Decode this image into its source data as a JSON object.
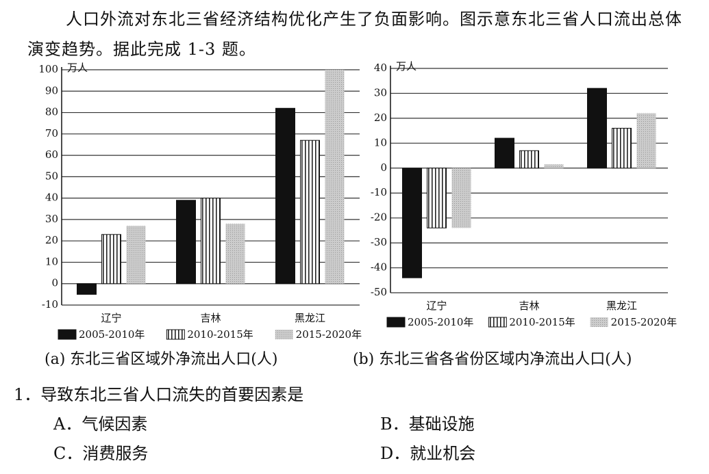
{
  "intro": "人口外流对东北三省经济结构优化产生了负面影响。图示意东北三省人口流出总体演变趋势。据此完成 1-3 题。",
  "chart_data": [
    {
      "type": "bar",
      "caption": "(a) 东北三省区域外净流出人口(人)",
      "y_label": "万人",
      "categories": [
        "辽宁",
        "吉林",
        "黑龙江"
      ],
      "series": [
        {
          "name": "2005-2010年",
          "color": "#111111",
          "pattern": "solid",
          "values": [
            -5,
            39,
            82
          ]
        },
        {
          "name": "2010-2015年",
          "color": "#222222",
          "pattern": "stripes",
          "values": [
            23,
            40,
            67
          ]
        },
        {
          "name": "2015-2020年",
          "color": "#bbbbbb",
          "pattern": "dots",
          "values": [
            27,
            28,
            100
          ]
        }
      ],
      "ylim": [
        -10,
        100
      ],
      "yticks": [
        -10,
        0,
        10,
        20,
        30,
        40,
        50,
        60,
        70,
        80,
        90,
        100
      ],
      "grid": true
    },
    {
      "type": "bar",
      "caption": "(b) 东北三省各省份区域内净流出人口(人)",
      "y_label": "万人",
      "categories": [
        "辽宁",
        "吉林",
        "黑龙江"
      ],
      "series": [
        {
          "name": "2005-2010年",
          "color": "#111111",
          "pattern": "solid",
          "values": [
            -44,
            12,
            32
          ]
        },
        {
          "name": "2010-2015年",
          "color": "#222222",
          "pattern": "stripes",
          "values": [
            -24,
            7,
            16
          ]
        },
        {
          "name": "2015-2020年",
          "color": "#bbbbbb",
          "pattern": "dots",
          "values": [
            -24,
            1.5,
            22
          ]
        }
      ],
      "ylim": [
        -50,
        40
      ],
      "yticks": [
        -50,
        -40,
        -30,
        -20,
        -10,
        0,
        10,
        20,
        30,
        40
      ],
      "grid": true
    }
  ],
  "question": {
    "stem": "1．导致东北三省人口流失的首要因素是",
    "options": [
      "A．气候因素",
      "B．基础设施",
      "C．消费服务",
      "D．就业机会"
    ]
  }
}
